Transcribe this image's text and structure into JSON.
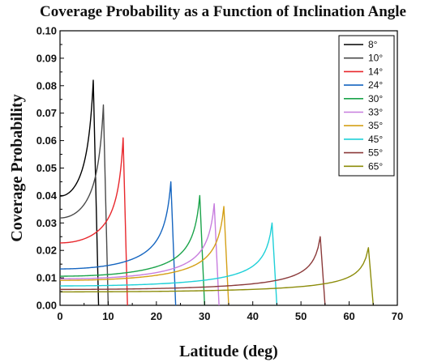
{
  "chart_data": {
    "type": "line",
    "title": "Coverage Probability as a Function of Inclination Angle",
    "xlabel": "Latitude (deg)",
    "ylabel": "Coverage Probability",
    "xlim": [
      0,
      70
    ],
    "ylim": [
      0,
      0.1
    ],
    "xticks": [
      0,
      10,
      20,
      30,
      40,
      50,
      60,
      70
    ],
    "yticks": [
      0.0,
      0.01,
      0.02,
      0.03,
      0.04,
      0.05,
      0.06,
      0.07,
      0.08,
      0.09,
      0.1
    ],
    "ytick_labels": [
      "0.00",
      "0.01",
      "0.02",
      "0.03",
      "0.04",
      "0.05",
      "0.06",
      "0.07",
      "0.08",
      "0.09",
      "0.10"
    ],
    "legend_position": "top-right",
    "grid": false,
    "series": [
      {
        "name": "8°",
        "color": "#000000",
        "inclination": 8,
        "peak_x": 6.9,
        "peak_y": 0.082
      },
      {
        "name": "10°",
        "color": "#4a4a4a",
        "inclination": 10,
        "peak_x": 9.0,
        "peak_y": 0.073
      },
      {
        "name": "14°",
        "color": "#e8272c",
        "inclination": 14,
        "peak_x": 13.1,
        "peak_y": 0.061
      },
      {
        "name": "24°",
        "color": "#1565c0",
        "inclination": 24,
        "peak_x": 23.0,
        "peak_y": 0.045
      },
      {
        "name": "30°",
        "color": "#1aa34a",
        "inclination": 30,
        "peak_x": 29.0,
        "peak_y": 0.04
      },
      {
        "name": "33°",
        "color": "#c77dde",
        "inclination": 33,
        "peak_x": 32.0,
        "peak_y": 0.037
      },
      {
        "name": "35°",
        "color": "#d4a017",
        "inclination": 35,
        "peak_x": 34.0,
        "peak_y": 0.036
      },
      {
        "name": "45°",
        "color": "#1fd0d8",
        "inclination": 45,
        "peak_x": 44.0,
        "peak_y": 0.03
      },
      {
        "name": "55°",
        "color": "#8b3a3a",
        "inclination": 55,
        "peak_x": 54.0,
        "peak_y": 0.025
      },
      {
        "name": "65°",
        "color": "#8c8c0a",
        "inclination": 65,
        "peak_x": 64.0,
        "peak_y": 0.021
      }
    ]
  }
}
